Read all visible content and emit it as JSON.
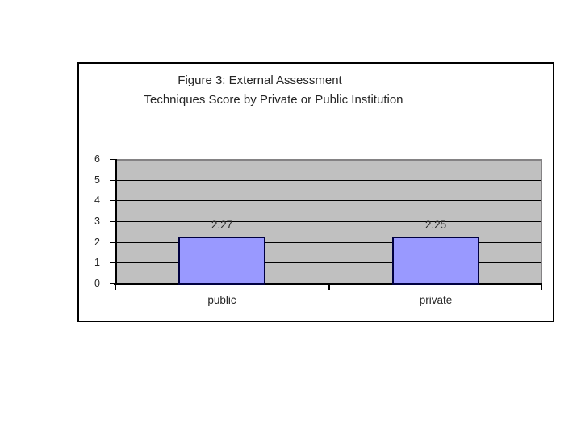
{
  "page": {
    "background": "#FFFFFF"
  },
  "chart_data": {
    "type": "bar",
    "title": "Figure 3: External Assessment Techniques Score by Private or Public Institution",
    "title_lines": [
      "Figure 3: External Assessment",
      "Techniques Score by Private or Public Institution"
    ],
    "categories": [
      "public",
      "private"
    ],
    "values": [
      2.27,
      2.25
    ],
    "data_labels": [
      "2.27",
      "2.25"
    ],
    "xlabel": "",
    "ylabel": "",
    "ylim": [
      0,
      6
    ],
    "yticks": [
      "0",
      "1",
      "2",
      "3",
      "4",
      "5",
      "6"
    ],
    "grid": true,
    "legend": "none",
    "colors": {
      "bar_fill": "#9999FF",
      "bar_border": "#000040",
      "plot_bg": "#C0C0C0",
      "plot_border": "#848284",
      "gridline": "#000000",
      "axis": "#000000",
      "text": "#262626",
      "frame_bg": "#FFFFFF",
      "frame_border": "#000000"
    }
  }
}
